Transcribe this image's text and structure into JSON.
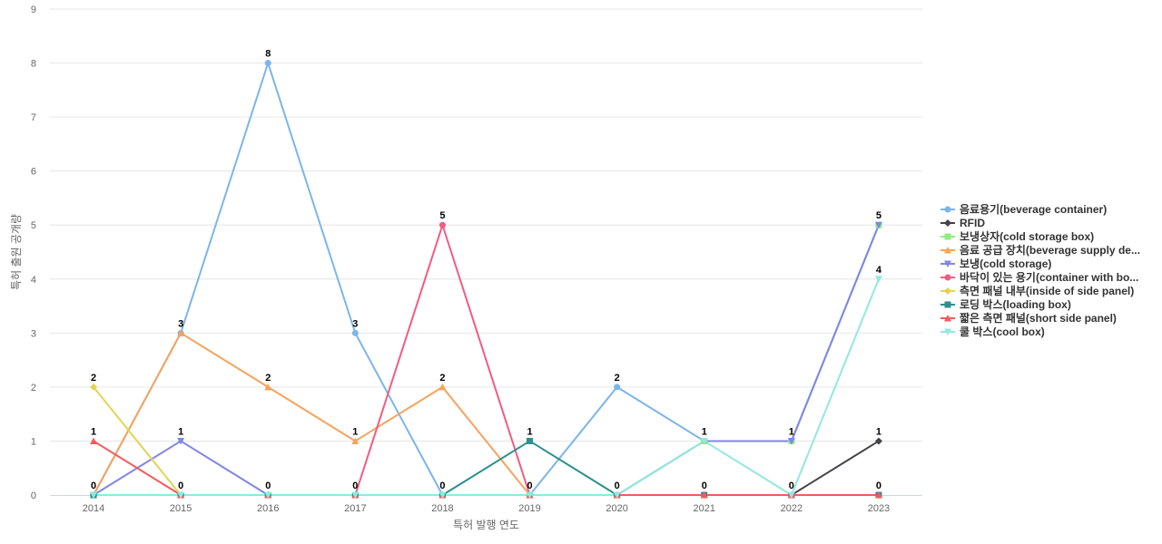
{
  "chart_data": {
    "type": "line",
    "xlabel": "특허 발행 연도",
    "ylabel": "특허 출원 공개량",
    "ylim": [
      0,
      9
    ],
    "yticks": [
      0,
      1,
      2,
      3,
      4,
      5,
      6,
      7,
      8,
      9
    ],
    "grid": true,
    "legend_position": "right",
    "categories": [
      "2014",
      "2015",
      "2016",
      "2017",
      "2018",
      "2019",
      "2020",
      "2021",
      "2022",
      "2023"
    ],
    "series": [
      {
        "name": "음료용기(beverage container)",
        "color": "#7cb5ec",
        "marker": "circle",
        "values": [
          0,
          3,
          8,
          3,
          0,
          0,
          2,
          1,
          1,
          5
        ]
      },
      {
        "name": "RFID",
        "color": "#434348",
        "marker": "diamond",
        "values": [
          0,
          0,
          0,
          0,
          0,
          0,
          0,
          0,
          0,
          1
        ]
      },
      {
        "name": "보냉상자(cold storage box)",
        "color": "#90ed7d",
        "marker": "square",
        "values": [
          0,
          0,
          0,
          0,
          0,
          0,
          0,
          1,
          1,
          5
        ]
      },
      {
        "name": "음료 공급 장치(beverage supply de...",
        "color": "#f7a35c",
        "marker": "triangle",
        "values": [
          0,
          3,
          2,
          1,
          2,
          0,
          0,
          0,
          0,
          0
        ]
      },
      {
        "name": "보냉(cold storage)",
        "color": "#8085e9",
        "marker": "triangle-down",
        "values": [
          0,
          1,
          0,
          0,
          0,
          0,
          0,
          1,
          1,
          5
        ]
      },
      {
        "name": "바닥이 있는 용기(container with bo...",
        "color": "#f15c80",
        "marker": "circle",
        "values": [
          0,
          0,
          0,
          0,
          5,
          0,
          0,
          0,
          0,
          0
        ]
      },
      {
        "name": "측면 패널 내부(inside of side panel)",
        "color": "#e4d354",
        "marker": "diamond",
        "values": [
          2,
          0,
          0,
          0,
          0,
          0,
          0,
          0,
          0,
          0
        ]
      },
      {
        "name": "로딩 박스(loading box)",
        "color": "#2b908f",
        "marker": "square",
        "values": [
          0,
          0,
          0,
          0,
          0,
          1,
          0,
          0,
          0,
          0
        ]
      },
      {
        "name": "짧은 측면 패널(short side panel)",
        "color": "#f45b5b",
        "marker": "triangle",
        "values": [
          1,
          0,
          0,
          0,
          0,
          0,
          0,
          0,
          0,
          0
        ]
      },
      {
        "name": "쿨 박스(cool box)",
        "color": "#91e8e1",
        "marker": "triangle-down",
        "values": [
          0,
          0,
          0,
          0,
          0,
          0,
          0,
          1,
          0,
          4
        ]
      }
    ],
    "data_labels": [
      {
        "x": "2014",
        "value": 0,
        "series": "로딩 박스(loading box)"
      },
      {
        "x": "2014",
        "value": 1,
        "series": "짧은 측면 패널(short side panel)"
      },
      {
        "x": "2014",
        "value": 2,
        "series": "측면 패널 내부(inside of side panel)"
      },
      {
        "x": "2015",
        "value": 0,
        "series": "로딩 박스(loading box)"
      },
      {
        "x": "2015",
        "value": 1,
        "series": "보냉(cold storage)"
      },
      {
        "x": "2015",
        "value": 3,
        "series": "음료용기(beverage container)"
      },
      {
        "x": "2016",
        "value": 0,
        "series": "로딩 박스(loading box)"
      },
      {
        "x": "2016",
        "value": 2,
        "series": "음료 공급 장치(beverage supply de..."
      },
      {
        "x": "2016",
        "value": 8,
        "series": "음료용기(beverage container)"
      },
      {
        "x": "2017",
        "value": 0,
        "series": "로딩 박스(loading box)"
      },
      {
        "x": "2017",
        "value": 1,
        "series": "음료 공급 장치(beverage supply de..."
      },
      {
        "x": "2017",
        "value": 3,
        "series": "음료용기(beverage container)"
      },
      {
        "x": "2018",
        "value": 0,
        "series": "로딩 박스(loading box)"
      },
      {
        "x": "2018",
        "value": 2,
        "series": "음료 공급 장치(beverage supply de..."
      },
      {
        "x": "2018",
        "value": 5,
        "series": "바닥이 있는 용기(container with bo..."
      },
      {
        "x": "2019",
        "value": 0,
        "series": "음료용기(beverage container)"
      },
      {
        "x": "2019",
        "value": 1,
        "series": "로딩 박스(loading box)"
      },
      {
        "x": "2020",
        "value": 0,
        "series": "로딩 박스(loading box)"
      },
      {
        "x": "2020",
        "value": 2,
        "series": "음료용기(beverage container)"
      },
      {
        "x": "2021",
        "value": 0,
        "series": "로딩 박스(loading box)"
      },
      {
        "x": "2021",
        "value": 1,
        "series": "음료용기(beverage container)"
      },
      {
        "x": "2022",
        "value": 0,
        "series": "로딩 박스(loading box)"
      },
      {
        "x": "2022",
        "value": 1,
        "series": "음료용기(beverage container)"
      },
      {
        "x": "2023",
        "value": 0,
        "series": "로딩 박스(loading box)"
      },
      {
        "x": "2023",
        "value": 1,
        "series": "RFID"
      },
      {
        "x": "2023",
        "value": 4,
        "series": "쿨 박스(cool box)"
      },
      {
        "x": "2023",
        "value": 5,
        "series": "음료용기(beverage container)"
      }
    ]
  }
}
